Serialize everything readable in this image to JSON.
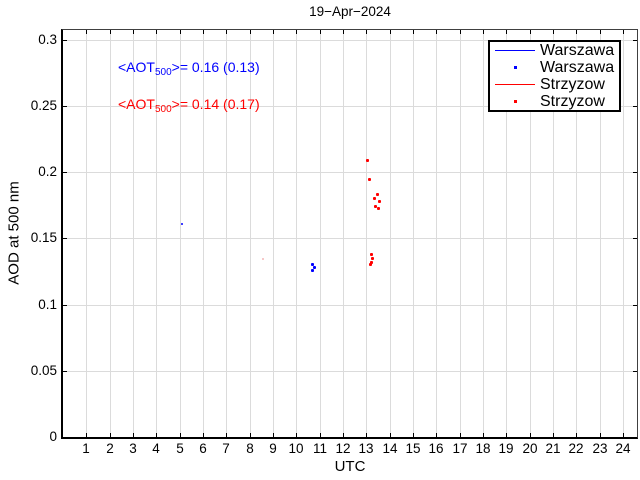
{
  "chart_data": {
    "type": "scatter",
    "title": "19−Apr−2024",
    "xlabel": "UTC",
    "ylabel": "AOD at 500 nm",
    "xlim": [
      0,
      24.6
    ],
    "ylim": [
      0,
      0.3072
    ],
    "grid": true,
    "grid_color": "#dbdbdb",
    "axis_color": "#000000",
    "xticks": [
      1,
      2,
      3,
      4,
      5,
      6,
      7,
      8,
      9,
      10,
      11,
      12,
      13,
      14,
      15,
      16,
      17,
      18,
      19,
      20,
      21,
      22,
      23,
      24
    ],
    "yticks": [
      {
        "v": 0,
        "label": "0"
      },
      {
        "v": 0.05,
        "label": "0.05"
      },
      {
        "v": 0.1,
        "label": "0.1"
      },
      {
        "v": 0.15,
        "label": "0.15"
      },
      {
        "v": 0.2,
        "label": "0.2"
      },
      {
        "v": 0.25,
        "label": "0.25"
      },
      {
        "v": 0.3,
        "label": "0.3"
      }
    ],
    "legend": {
      "position": "top-right",
      "entries": [
        {
          "sample": "line",
          "color": "#0000ff",
          "label": "Warszawa"
        },
        {
          "sample": "dot",
          "color": "#0000ff",
          "label": "Warszawa"
        },
        {
          "sample": "line",
          "color": "#ff0000",
          "label": "Strzyzow"
        },
        {
          "sample": "dot",
          "color": "#ff0000",
          "label": "Strzyzow"
        }
      ]
    },
    "annotations": [
      {
        "prefix": "<AOT",
        "sub": "500",
        "suffix": ">= 0.16 (0.13)",
        "color": "#0000ff",
        "series": "Warszawa"
      },
      {
        "prefix": "<AOT",
        "sub": "500",
        "suffix": ">= 0.14 (0.17)",
        "color": "#ff0000",
        "series": "Strzyzow"
      }
    ],
    "series": [
      {
        "name": "Warszawa",
        "color": "#0000ff",
        "marker": "dot",
        "marker_size": 3,
        "points": [
          [
            5.08,
            0.161,
            2
          ],
          [
            10.7,
            0.1302
          ],
          [
            10.79,
            0.1279
          ],
          [
            10.7,
            0.126
          ]
        ]
      },
      {
        "name": "Strzyzow",
        "color": "#ff0000",
        "marker": "dot",
        "marker_size": 3,
        "points": [
          [
            13.03,
            0.2085
          ],
          [
            13.13,
            0.1945
          ],
          [
            13.46,
            0.1832
          ],
          [
            13.34,
            0.1802
          ],
          [
            13.56,
            0.1774
          ],
          [
            13.4,
            0.1738
          ],
          [
            13.5,
            0.1726
          ],
          [
            13.2,
            0.1381
          ],
          [
            13.27,
            0.1349
          ],
          [
            13.23,
            0.1318
          ],
          [
            13.17,
            0.1302
          ]
        ]
      },
      {
        "name": "Strzyzow-faint",
        "color": "#f4b6b6",
        "marker": "dot",
        "marker_size": 2,
        "points": [
          [
            8.57,
            0.1341
          ]
        ]
      }
    ]
  }
}
